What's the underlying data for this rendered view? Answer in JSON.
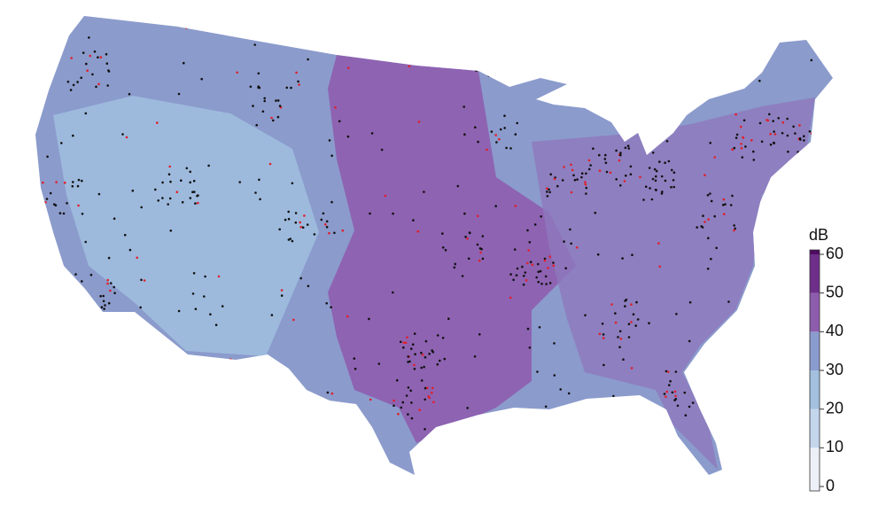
{
  "colorbar": {
    "title": "dB",
    "ticks": [
      0,
      10,
      20,
      30,
      40,
      50,
      60
    ],
    "colors": [
      "#eef0f7",
      "#c4d6ec",
      "#a3c0df",
      "#8a9bce",
      "#8d5cad",
      "#6e2f8a"
    ],
    "top_color": "#4f0b60"
  }
}
